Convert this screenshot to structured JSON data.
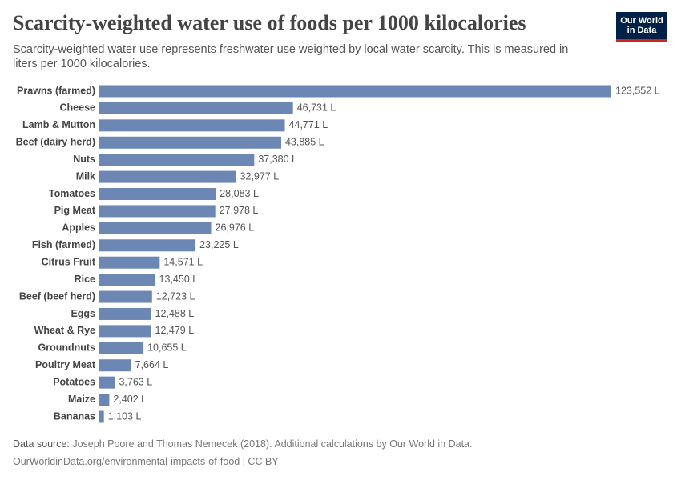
{
  "title": "Scarcity-weighted water use of foods per 1000 kilocalories",
  "subtitle": "Scarcity-weighted water use represents freshwater use weighted by local water scarcity. This is measured in liters per 1000 kilocalories.",
  "logo": [
    "Our World",
    "in Data"
  ],
  "source_label": "Data source:",
  "source": "Joseph Poore and Thomas Nemecek (2018). Additional calculations by Our World in Data.",
  "footer": "OurWorldinData.org/environmental-impacts-of-food | CC BY",
  "chart_data": {
    "type": "hbar",
    "color": "#6d87b5",
    "categories": [
      "Prawns (farmed)",
      "Cheese",
      "Lamb & Mutton",
      "Beef (dairy herd)",
      "Nuts",
      "Milk",
      "Tomatoes",
      "Pig Meat",
      "Apples",
      "Fish (farmed)",
      "Citrus Fruit",
      "Rice",
      "Beef (beef herd)",
      "Eggs",
      "Wheat & Rye",
      "Groundnuts",
      "Poultry Meat",
      "Potatoes",
      "Maize",
      "Bananas"
    ],
    "values": [
      123552,
      46731,
      44771,
      43885,
      37380,
      32977,
      28083,
      27978,
      26976,
      23225,
      14571,
      13450,
      12723,
      12488,
      12479,
      10655,
      7664,
      3763,
      2402,
      1103
    ],
    "value_labels": [
      "123,552 L",
      "46,731 L",
      "44,771 L",
      "43,885 L",
      "37,380 L",
      "32,977 L",
      "28,083 L",
      "27,978 L",
      "26,976 L",
      "23,225 L",
      "14,571 L",
      "13,450 L",
      "12,723 L",
      "12,488 L",
      "12,479 L",
      "10,655 L",
      "7,664 L",
      "3,763 L",
      "2,402 L",
      "1,103 L"
    ]
  }
}
